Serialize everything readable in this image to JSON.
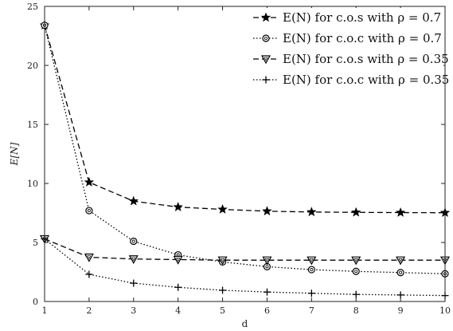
{
  "chart_data": {
    "type": "line",
    "xlabel": "d",
    "ylabel": "E[N]",
    "x": [
      1,
      2,
      3,
      4,
      5,
      6,
      7,
      8,
      9,
      10
    ],
    "xlim": [
      1,
      10
    ],
    "ylim": [
      0,
      25
    ],
    "xticks": [
      1,
      2,
      3,
      4,
      5,
      6,
      7,
      8,
      9,
      10
    ],
    "yticks": [
      0,
      5,
      10,
      15,
      20,
      25
    ],
    "grid": false,
    "legend_position": "top-right",
    "series": [
      {
        "name": "E(N) for c.o.s with ρ = 0.7",
        "marker": "star",
        "line_style": "dashed",
        "values": [
          23.4,
          10.1,
          8.5,
          8.0,
          7.8,
          7.65,
          7.58,
          7.55,
          7.53,
          7.52
        ]
      },
      {
        "name": "E(N) for c.o.c with ρ = 0.7",
        "marker": "circle",
        "line_style": "dotted",
        "values": [
          23.4,
          7.7,
          5.1,
          3.95,
          3.35,
          2.95,
          2.7,
          2.55,
          2.45,
          2.35
        ]
      },
      {
        "name": "E(N) for c.o.s with ρ = 0.35",
        "marker": "triangle-down",
        "line_style": "dashed",
        "values": [
          5.3,
          3.75,
          3.6,
          3.55,
          3.5,
          3.5,
          3.5,
          3.5,
          3.5,
          3.5
        ]
      },
      {
        "name": "E(N) for c.o.c with ρ = 0.35",
        "marker": "plus",
        "line_style": "dotted",
        "values": [
          5.3,
          2.3,
          1.55,
          1.2,
          0.95,
          0.8,
          0.7,
          0.6,
          0.55,
          0.5
        ]
      }
    ]
  }
}
